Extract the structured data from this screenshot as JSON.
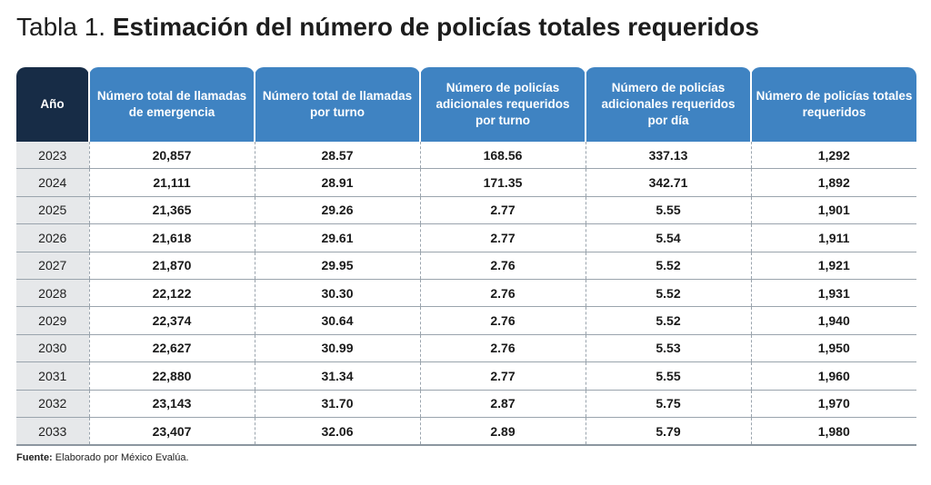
{
  "title": {
    "prefix": "Tabla 1.",
    "main": "Estimación del número de policías totales requeridos"
  },
  "table": {
    "headers": [
      "Año",
      "Número total de llamadas de emergencia",
      "Número total de llamadas por turno",
      "Número de policías adicionales requeridos por turno",
      "Número de policías adicionales requeridos por día",
      "Número de policías totales requeridos"
    ],
    "rows": [
      [
        "2023",
        "20,857",
        "28.57",
        "168.56",
        "337.13",
        "1,292"
      ],
      [
        "2024",
        "21,111",
        "28.91",
        "171.35",
        "342.71",
        "1,892"
      ],
      [
        "2025",
        "21,365",
        "29.26",
        "2.77",
        "5.55",
        "1,901"
      ],
      [
        "2026",
        "21,618",
        "29.61",
        "2.77",
        "5.54",
        "1,911"
      ],
      [
        "2027",
        "21,870",
        "29.95",
        "2.76",
        "5.52",
        "1,921"
      ],
      [
        "2028",
        "22,122",
        "30.30",
        "2.76",
        "5.52",
        "1,931"
      ],
      [
        "2029",
        "22,374",
        "30.64",
        "2.76",
        "5.52",
        "1,940"
      ],
      [
        "2030",
        "22,627",
        "30.99",
        "2.76",
        "5.53",
        "1,950"
      ],
      [
        "2031",
        "22,880",
        "31.34",
        "2.77",
        "5.55",
        "1,960"
      ],
      [
        "2032",
        "23,143",
        "31.70",
        "2.87",
        "5.75",
        "1,970"
      ],
      [
        "2033",
        "23,407",
        "32.06",
        "2.89",
        "5.79",
        "1,980"
      ]
    ]
  },
  "source": {
    "label": "Fuente:",
    "text": "Elaborado por México Evalúa."
  },
  "colors": {
    "year_header": "#172c46",
    "column_header": "#3f83c2",
    "year_cell": "#e6e8ea"
  }
}
